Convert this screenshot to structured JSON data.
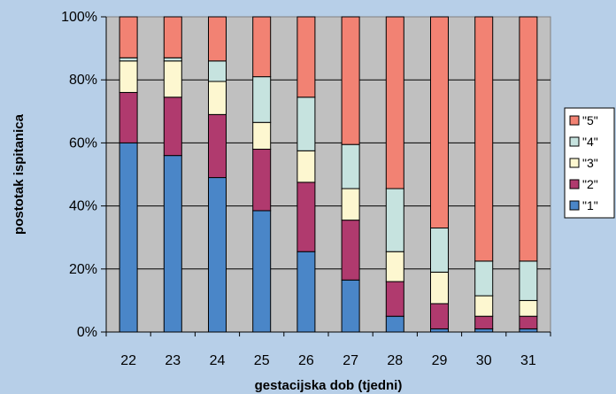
{
  "chart_data": {
    "type": "bar",
    "stacked": true,
    "percent": true,
    "title": "",
    "xlabel": "gestacijska dob (tjedni)",
    "ylabel": "postotak ispitanica",
    "ylim": [
      0,
      100
    ],
    "yticks": [
      "0%",
      "20%",
      "40%",
      "60%",
      "80%",
      "100%"
    ],
    "categories": [
      "22",
      "23",
      "24",
      "25",
      "26",
      "27",
      "28",
      "29",
      "30",
      "31"
    ],
    "grid": true,
    "legend_position": "right",
    "series": [
      {
        "name": "\"1\"",
        "color": "#4a86c8",
        "values": [
          60,
          56,
          49,
          38.5,
          25.5,
          16.5,
          5,
          1,
          1,
          1
        ]
      },
      {
        "name": "\"2\"",
        "color": "#b03a6e",
        "values": [
          16,
          18.5,
          20,
          19.5,
          22,
          19,
          11,
          8,
          4,
          4
        ]
      },
      {
        "name": "\"3\"",
        "color": "#fdf7d0",
        "values": [
          10,
          11.5,
          10.5,
          8.5,
          10,
          10,
          9.5,
          10,
          6.5,
          5
        ]
      },
      {
        "name": "\"4\"",
        "color": "#c6e3df",
        "values": [
          1,
          1,
          6.5,
          14.5,
          17,
          14,
          20,
          14,
          11,
          12.5
        ]
      },
      {
        "name": "\"5\"",
        "color": "#f28273",
        "values": [
          13,
          13,
          14,
          19,
          25.5,
          40.5,
          54.5,
          67,
          77.5,
          77.5
        ]
      }
    ]
  }
}
